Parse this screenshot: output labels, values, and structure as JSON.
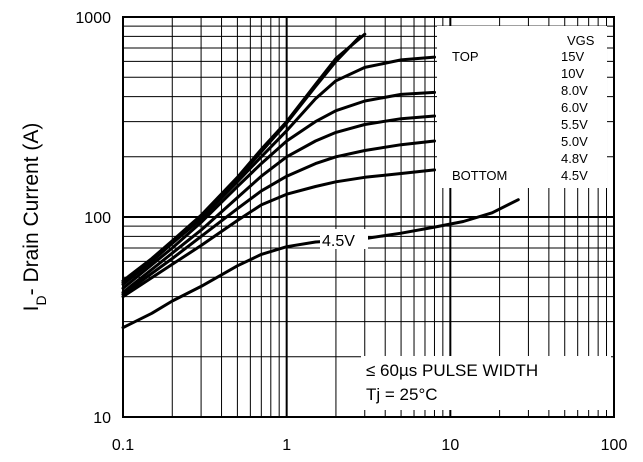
{
  "chart_data": {
    "type": "line",
    "xscale": "log",
    "yscale": "log",
    "xlim": [
      0.1,
      100
    ],
    "ylim": [
      10,
      1000
    ],
    "xticks": [
      "0.1",
      "1",
      "10",
      "100"
    ],
    "yticks": [
      "10",
      "100",
      "1000"
    ],
    "ylabel_main": "I",
    "ylabel_sub": "D",
    "ylabel_rest": "- Drain Current (A)",
    "grid": true,
    "legend": {
      "header": "VGS",
      "top_label": "TOP",
      "bottom_label": "BOTTOM",
      "entries": [
        "15V",
        "10V",
        "8.0V",
        "6.0V",
        "5.5V",
        "5.0V",
        "4.8V",
        "4.5V"
      ]
    },
    "inline_label": "4.5V",
    "annotation_lines": [
      "≤ 60µs PULSE WIDTH",
      "Tj = 25°C"
    ],
    "series": [
      {
        "legend": "15V",
        "x": [
          0.1,
          0.15,
          0.2,
          0.3,
          0.5,
          0.7,
          1,
          1.5,
          2,
          3
        ],
        "y": [
          48,
          62,
          76,
          102,
          158,
          218,
          300,
          460,
          620,
          820
        ]
      },
      {
        "legend": "10V",
        "x": [
          0.1,
          0.15,
          0.2,
          0.3,
          0.5,
          0.7,
          1,
          1.5,
          2,
          2.8
        ],
        "y": [
          46,
          60,
          74,
          100,
          155,
          212,
          295,
          450,
          600,
          800
        ]
      },
      {
        "legend": "8.0V",
        "x": [
          0.1,
          0.2,
          0.3,
          0.5,
          0.7,
          1,
          1.5,
          2,
          3,
          5,
          8
        ],
        "y": [
          47,
          74,
          98,
          150,
          200,
          270,
          390,
          480,
          560,
          610,
          630
        ]
      },
      {
        "legend": "6.0V",
        "x": [
          0.1,
          0.2,
          0.3,
          0.5,
          0.7,
          1,
          1.5,
          2,
          3,
          5,
          8
        ],
        "y": [
          44,
          70,
          94,
          142,
          185,
          240,
          300,
          340,
          380,
          410,
          420
        ]
      },
      {
        "legend": "5.5V",
        "x": [
          0.1,
          0.2,
          0.3,
          0.5,
          0.7,
          1,
          1.5,
          2,
          3,
          5,
          8
        ],
        "y": [
          42,
          66,
          86,
          125,
          160,
          200,
          240,
          265,
          290,
          310,
          320
        ]
      },
      {
        "legend": "5.0V",
        "x": [
          0.1,
          0.2,
          0.3,
          0.5,
          0.7,
          1,
          1.5,
          2,
          3,
          5,
          8
        ],
        "y": [
          41,
          62,
          80,
          110,
          135,
          160,
          185,
          200,
          215,
          230,
          240
        ]
      },
      {
        "legend": "4.8V",
        "x": [
          0.1,
          0.2,
          0.3,
          0.5,
          0.7,
          1,
          1.5,
          2,
          3,
          5,
          8
        ],
        "y": [
          40,
          58,
          72,
          96,
          115,
          130,
          142,
          150,
          158,
          165,
          172
        ]
      },
      {
        "legend": "4.5V",
        "x": [
          0.1,
          0.15,
          0.2,
          0.3,
          0.5,
          0.7,
          1,
          1.5,
          2,
          3,
          5,
          8,
          12,
          18,
          26
        ],
        "y": [
          28,
          33,
          38,
          45,
          57,
          65,
          71,
          75,
          76,
          78,
          83,
          89,
          95,
          105,
          122
        ]
      }
    ]
  }
}
